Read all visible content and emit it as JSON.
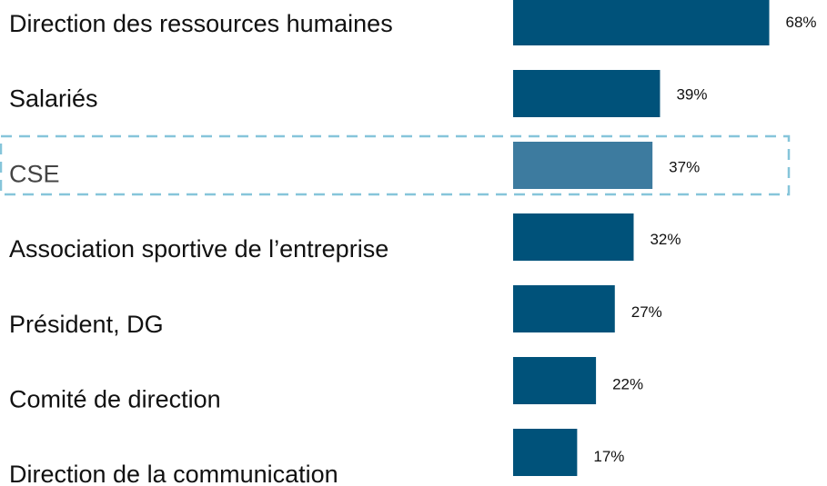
{
  "chart_data": {
    "type": "bar",
    "orientation": "horizontal",
    "categories": [
      "Direction des ressources humaines",
      "Salariés",
      "CSE",
      "Association sportive de l’entreprise",
      "Président, DG",
      "Comité de direction",
      "Direction de la communication"
    ],
    "values": [
      68,
      39,
      37,
      32,
      27,
      22,
      17
    ],
    "value_labels": [
      "68%",
      "39%",
      "37%",
      "32%",
      "27%",
      "22%",
      "17%"
    ],
    "color": "#00527a",
    "highlight": "CSE",
    "highlight_color": "#3d7b9f"
  }
}
